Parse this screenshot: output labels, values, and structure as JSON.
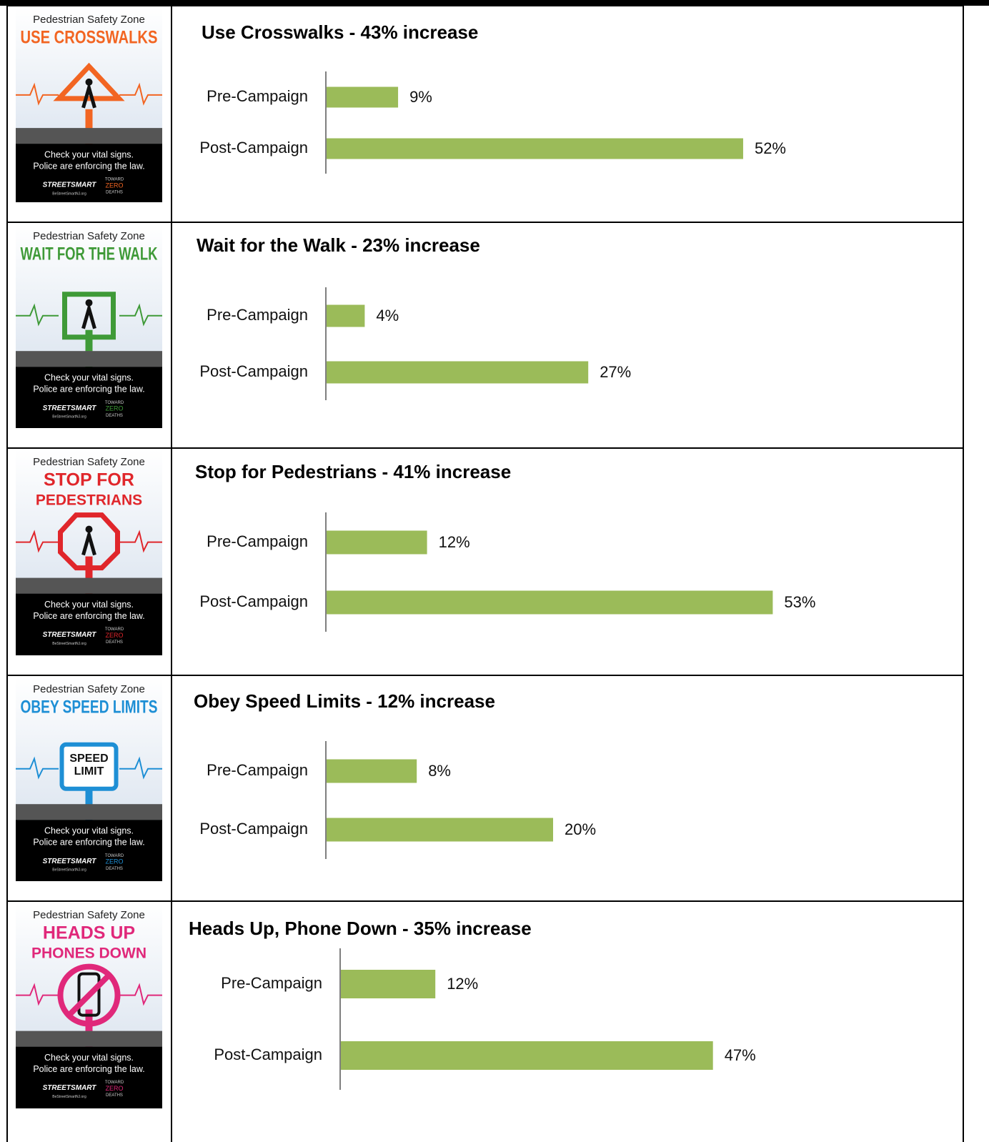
{
  "chart_data": [
    {
      "type": "bar",
      "orientation": "horizontal",
      "title": "Use Crosswalks - 43% increase",
      "categories": [
        "Pre-Campaign",
        "Post-Campaign"
      ],
      "values": [
        9,
        52
      ],
      "value_labels": [
        "9%",
        "52%"
      ],
      "color": "#9bbb59"
    },
    {
      "type": "bar",
      "orientation": "horizontal",
      "title": "Wait for the Walk - 23% increase",
      "categories": [
        "Pre-Campaign",
        "Post-Campaign"
      ],
      "values": [
        4,
        27
      ],
      "value_labels": [
        "4%",
        "27%"
      ],
      "color": "#9bbb59"
    },
    {
      "type": "bar",
      "orientation": "horizontal",
      "title": "Stop for Pedestrians - 41% increase",
      "categories": [
        "Pre-Campaign",
        "Post-Campaign"
      ],
      "values": [
        12,
        53
      ],
      "value_labels": [
        "12%",
        "53%"
      ],
      "color": "#9bbb59"
    },
    {
      "type": "bar",
      "orientation": "horizontal",
      "title": "Obey Speed Limits - 12% increase",
      "categories": [
        "Pre-Campaign",
        "Post-Campaign"
      ],
      "values": [
        8,
        20
      ],
      "value_labels": [
        "8%",
        "20%"
      ],
      "color": "#9bbb59"
    },
    {
      "type": "bar",
      "orientation": "horizontal",
      "title": "Heads Up, Phone Down - 35% increase",
      "categories": [
        "Pre-Campaign",
        "Post-Campaign"
      ],
      "values": [
        12,
        47
      ],
      "value_labels": [
        "12%",
        "47%"
      ],
      "color": "#9bbb59"
    }
  ],
  "posters": [
    {
      "header": "Pedestrian Safety Zone",
      "headline": [
        "USE CROSSWALKS"
      ],
      "tagline": [
        "Check your vital signs.",
        "Police are enforcing the law."
      ],
      "brand": "STREETSMART",
      "site": "BeStreetSmartNJ.org",
      "badge": [
        "TOWARD",
        "ZERO",
        "DEATHS"
      ]
    },
    {
      "header": "Pedestrian Safety Zone",
      "headline": [
        "WAIT FOR THE WALK"
      ],
      "tagline": [
        "Check your vital signs.",
        "Police are enforcing the law."
      ],
      "brand": "STREETSMART",
      "site": "BeStreetSmartNJ.org",
      "badge": [
        "TOWARD",
        "ZERO",
        "DEATHS"
      ]
    },
    {
      "header": "Pedestrian Safety Zone",
      "headline": [
        "STOP FOR",
        "PEDESTRIANS"
      ],
      "tagline": [
        "Check your vital signs.",
        "Police are enforcing the law."
      ],
      "brand": "STREETSMART",
      "site": "BeStreetSmartNJ.org",
      "badge": [
        "TOWARD",
        "ZERO",
        "DEATHS"
      ]
    },
    {
      "header": "Pedestrian Safety Zone",
      "headline": [
        "OBEY SPEED LIMITS"
      ],
      "sign": [
        "SPEED",
        "LIMIT"
      ],
      "tagline": [
        "Check your vital signs.",
        "Police are enforcing the law."
      ],
      "brand": "STREETSMART",
      "site": "BeStreetSmartNJ.org",
      "badge": [
        "TOWARD",
        "ZERO",
        "DEATHS"
      ]
    },
    {
      "header": "Pedestrian Safety Zone",
      "headline": [
        "HEADS UP",
        "PHONES DOWN"
      ],
      "tagline": [
        "Check your vital signs.",
        "Police are enforcing the law."
      ],
      "brand": "STREETSMART",
      "site": "BeStreetSmartNJ.org",
      "badge": [
        "TOWARD",
        "ZERO",
        "DEATHS"
      ]
    }
  ]
}
